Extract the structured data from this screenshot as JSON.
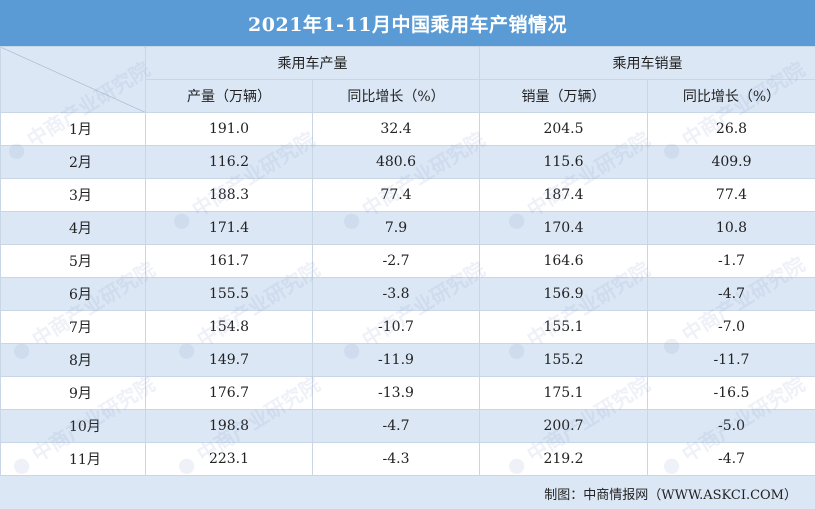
{
  "title": "2021年1-11月中国乘用车产销情况",
  "header": {
    "group_production": "乘用车产量",
    "group_sales": "乘用车销量",
    "col_production": "产量（万辆）",
    "col_production_yoy": "同比增长（%）",
    "col_sales": "销量（万辆）",
    "col_sales_yoy": "同比增长（%）"
  },
  "rows": [
    {
      "month": "1月",
      "production": "191.0",
      "production_yoy": "32.4",
      "sales": "204.5",
      "sales_yoy": "26.8"
    },
    {
      "month": "2月",
      "production": "116.2",
      "production_yoy": "480.6",
      "sales": "115.6",
      "sales_yoy": "409.9"
    },
    {
      "month": "3月",
      "production": "188.3",
      "production_yoy": "77.4",
      "sales": "187.4",
      "sales_yoy": "77.4"
    },
    {
      "month": "4月",
      "production": "171.4",
      "production_yoy": "7.9",
      "sales": "170.4",
      "sales_yoy": "10.8"
    },
    {
      "month": "5月",
      "production": "161.7",
      "production_yoy": "-2.7",
      "sales": "164.6",
      "sales_yoy": "-1.7"
    },
    {
      "month": "6月",
      "production": "155.5",
      "production_yoy": "-3.8",
      "sales": "156.9",
      "sales_yoy": "-4.7"
    },
    {
      "month": "7月",
      "production": "154.8",
      "production_yoy": "-10.7",
      "sales": "155.1",
      "sales_yoy": "-7.0"
    },
    {
      "month": "8月",
      "production": "149.7",
      "production_yoy": "-11.9",
      "sales": "155.2",
      "sales_yoy": "-11.7"
    },
    {
      "month": "9月",
      "production": "176.7",
      "production_yoy": "-13.9",
      "sales": "175.1",
      "sales_yoy": "-16.5"
    },
    {
      "month": "10月",
      "production": "198.8",
      "production_yoy": "-4.7",
      "sales": "200.7",
      "sales_yoy": "-5.0"
    },
    {
      "month": "11月",
      "production": "223.1",
      "production_yoy": "-4.3",
      "sales": "219.2",
      "sales_yoy": "-4.7"
    }
  ],
  "footer": {
    "source": "制图：中商情报网（WWW.ASKCI.COM）"
  },
  "watermark": {
    "text": "中商产业研究院"
  },
  "colors": {
    "title_bg": "#5b9bd5",
    "row_alt_bg": "#dbe7f5",
    "border": "#c9d6e6"
  }
}
